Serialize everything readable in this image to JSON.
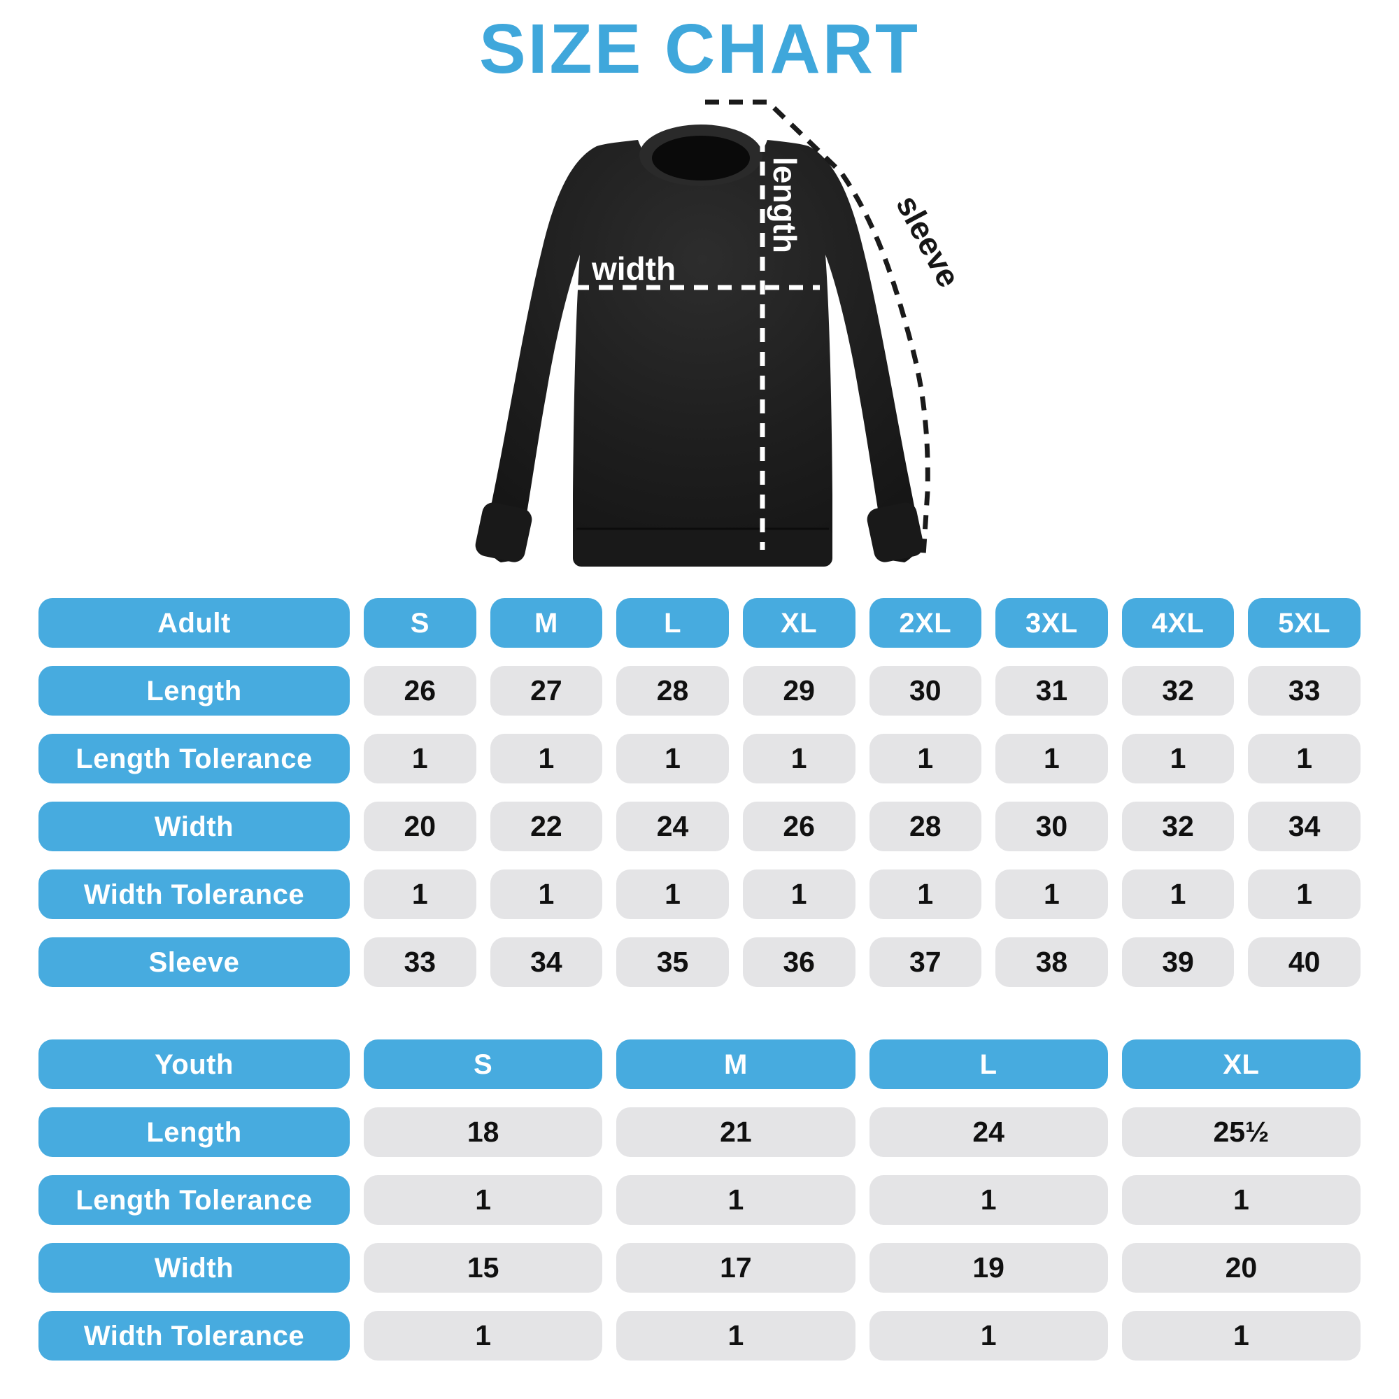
{
  "title": "SIZE CHART",
  "colors": {
    "title_blue": "#3FA7DB",
    "pill_blue": "#47ABDF",
    "cell_gray": "#E4E4E6",
    "garment_black": "#1C1C1C",
    "measure_line_white": "#FFFFFF",
    "measure_line_black": "#1A1A1A"
  },
  "diagram": {
    "labels": {
      "length": "length",
      "width": "width",
      "sleeve": "sleeve"
    }
  },
  "chart_data": [
    {
      "type": "table",
      "name": "adult-size-table",
      "header_label": "Adult",
      "sizes": [
        "S",
        "M",
        "L",
        "XL",
        "2XL",
        "3XL",
        "4XL",
        "5XL"
      ],
      "rows": [
        {
          "label": "Length",
          "values": [
            "26",
            "27",
            "28",
            "29",
            "30",
            "31",
            "32",
            "33"
          ]
        },
        {
          "label": "Length Tolerance",
          "values": [
            "1",
            "1",
            "1",
            "1",
            "1",
            "1",
            "1",
            "1"
          ]
        },
        {
          "label": "Width",
          "values": [
            "20",
            "22",
            "24",
            "26",
            "28",
            "30",
            "32",
            "34"
          ]
        },
        {
          "label": "Width Tolerance",
          "values": [
            "1",
            "1",
            "1",
            "1",
            "1",
            "1",
            "1",
            "1"
          ]
        },
        {
          "label": "Sleeve",
          "values": [
            "33",
            "34",
            "35",
            "36",
            "37",
            "38",
            "39",
            "40"
          ]
        }
      ]
    },
    {
      "type": "table",
      "name": "youth-size-table",
      "header_label": "Youth",
      "sizes": [
        "S",
        "M",
        "L",
        "XL"
      ],
      "rows": [
        {
          "label": "Length",
          "values": [
            "18",
            "21",
            "24",
            "25½"
          ]
        },
        {
          "label": "Length Tolerance",
          "values": [
            "1",
            "1",
            "1",
            "1"
          ]
        },
        {
          "label": "Width",
          "values": [
            "15",
            "17",
            "19",
            "20"
          ]
        },
        {
          "label": "Width Tolerance",
          "values": [
            "1",
            "1",
            "1",
            "1"
          ]
        }
      ]
    }
  ]
}
